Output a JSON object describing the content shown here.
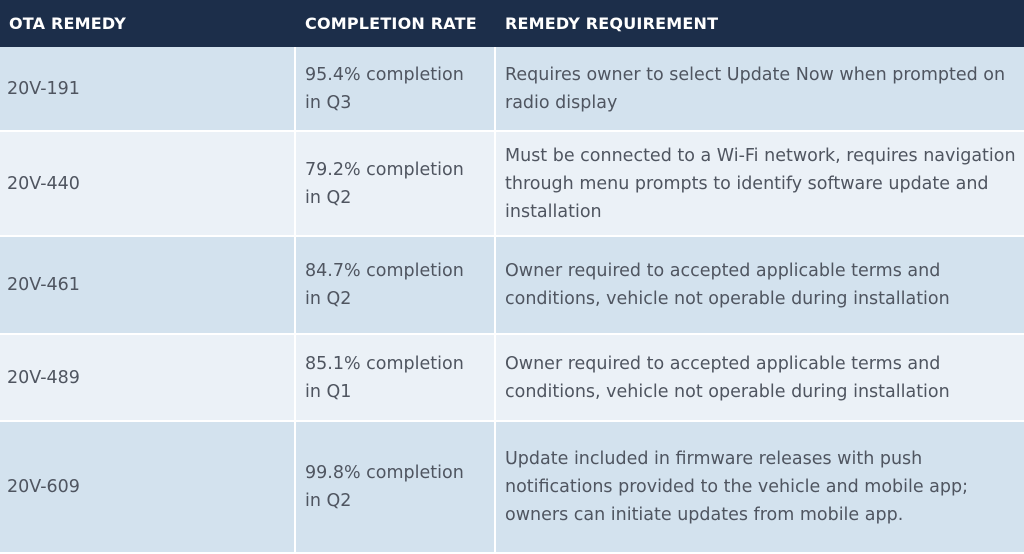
{
  "table": {
    "headers": [
      "OTA REMEDY",
      "COMPLETION RATE",
      "REMEDY REQUIREMENT"
    ],
    "rows": [
      {
        "remedy": "20V-191",
        "rate_line1": "95.4% completion",
        "rate_line2": "in Q3",
        "requirement": "Requires owner to select Update Now when prompted on radio display"
      },
      {
        "remedy": "20V-440",
        "rate_line1": "79.2% completion",
        "rate_line2": "in Q2",
        "requirement": "Must be connected to a Wi-Fi network, requires navigation through menu prompts to identify software update and installation"
      },
      {
        "remedy": "20V-461",
        "rate_line1": "84.7% completion",
        "rate_line2": "in Q2",
        "requirement": "Owner required to accepted applicable terms and conditions, vehicle not operable during installation"
      },
      {
        "remedy": "20V-489",
        "rate_line1": "85.1% completion",
        "rate_line2": "in Q1",
        "requirement": "Owner required to accepted applicable terms and conditions, vehicle not operable during installation"
      },
      {
        "remedy": "20V-609",
        "rate_line1": "99.8% completion",
        "rate_line2": "in Q2",
        "requirement": "Update included in firmware releases with push notifications provided to the vehicle and mobile app; owners can initiate updates from mobile app."
      }
    ]
  }
}
